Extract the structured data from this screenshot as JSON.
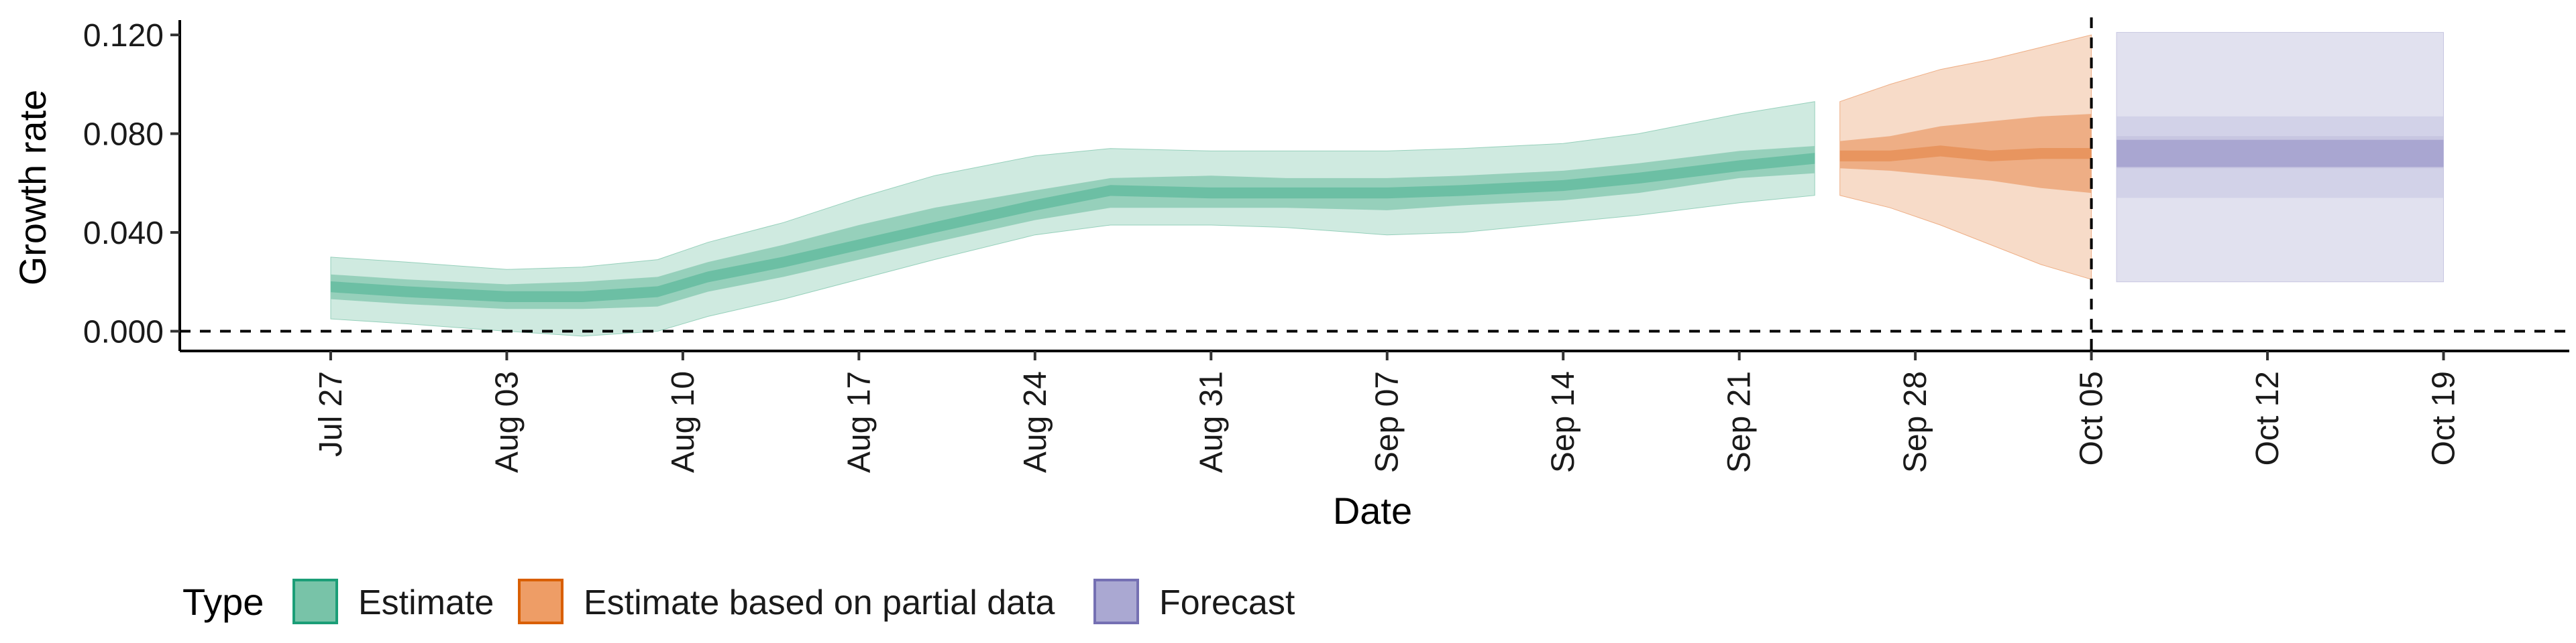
{
  "chart_data": {
    "type": "area",
    "title": "",
    "xlabel": "Date",
    "ylabel": "Growth rate",
    "ylim": [
      -0.008,
      0.126
    ],
    "xlim": [
      "2020-07-21",
      "2020-10-24"
    ],
    "yticks": [
      0.0,
      0.04,
      0.08,
      0.12
    ],
    "ytick_labels": [
      "0.000",
      "0.040",
      "0.080",
      "0.120"
    ],
    "xticks": [
      "2020-07-27",
      "2020-08-03",
      "2020-08-10",
      "2020-08-17",
      "2020-08-24",
      "2020-08-31",
      "2020-09-07",
      "2020-09-14",
      "2020-09-21",
      "2020-09-28",
      "2020-10-05",
      "2020-10-12",
      "2020-10-19"
    ],
    "xtick_labels": [
      "Jul 27",
      "Aug 03",
      "Aug 10",
      "Aug 17",
      "Aug 24",
      "Aug 31",
      "Sep 07",
      "Sep 14",
      "Sep 21",
      "Sep 28",
      "Oct 05",
      "Oct 12",
      "Oct 19"
    ],
    "reference_lines": {
      "horizontal_y": 0.0,
      "vertical_x": "2020-10-05"
    },
    "grid": false,
    "legend": {
      "title": "Type",
      "position": "bottom-left"
    },
    "colors": {
      "Estimate": [
        "#cfeae0",
        "#96d0bb",
        "#6cbfa4"
      ],
      "Estimate based on partial data": [
        "#f7dbc8",
        "#eeae85",
        "#e8955f"
      ],
      "Forecast": [
        "#e1e1ef",
        "#c7c6e1",
        "#a9a6d1"
      ]
    },
    "legend_colors": {
      "Estimate": {
        "fill": "#78c3a8",
        "stroke": "#1b9e77"
      },
      "Estimate based on partial data": {
        "fill": "#ee9d66",
        "stroke": "#d95f02"
      },
      "Forecast": {
        "fill": "#aaa8d2",
        "stroke": "#7570b3"
      }
    },
    "series": [
      {
        "name": "Estimate",
        "x": [
          "2020-07-27",
          "2020-07-30",
          "2020-08-03",
          "2020-08-06",
          "2020-08-09",
          "2020-08-11",
          "2020-08-14",
          "2020-08-17",
          "2020-08-20",
          "2020-08-24",
          "2020-08-27",
          "2020-08-31",
          "2020-09-03",
          "2020-09-07",
          "2020-09-10",
          "2020-09-14",
          "2020-09-17",
          "2020-09-21",
          "2020-09-24"
        ],
        "median": [
          0.018,
          0.016,
          0.014,
          0.014,
          0.016,
          0.022,
          0.028,
          0.035,
          0.042,
          0.051,
          0.057,
          0.056,
          0.056,
          0.056,
          0.057,
          0.059,
          0.062,
          0.067,
          0.07
        ],
        "inner_low": [
          0.013,
          0.011,
          0.009,
          0.009,
          0.01,
          0.016,
          0.022,
          0.029,
          0.036,
          0.045,
          0.05,
          0.05,
          0.05,
          0.049,
          0.051,
          0.053,
          0.056,
          0.062,
          0.064
        ],
        "inner_high": [
          0.023,
          0.021,
          0.019,
          0.02,
          0.022,
          0.028,
          0.035,
          0.043,
          0.05,
          0.057,
          0.062,
          0.063,
          0.062,
          0.062,
          0.063,
          0.065,
          0.068,
          0.073,
          0.075
        ],
        "outer_low": [
          0.005,
          0.003,
          0.0,
          -0.002,
          0.0,
          0.006,
          0.013,
          0.021,
          0.029,
          0.039,
          0.043,
          0.043,
          0.042,
          0.039,
          0.04,
          0.044,
          0.047,
          0.052,
          0.055
        ],
        "outer_high": [
          0.03,
          0.028,
          0.025,
          0.026,
          0.029,
          0.036,
          0.044,
          0.054,
          0.063,
          0.071,
          0.074,
          0.073,
          0.073,
          0.073,
          0.074,
          0.076,
          0.08,
          0.088,
          0.093
        ]
      },
      {
        "name": "Estimate based on partial data",
        "x": [
          "2020-09-25",
          "2020-09-27",
          "2020-09-29",
          "2020-10-01",
          "2020-10-03",
          "2020-10-05"
        ],
        "median": [
          0.071,
          0.071,
          0.073,
          0.071,
          0.072,
          0.072
        ],
        "inner_low": [
          0.066,
          0.065,
          0.063,
          0.061,
          0.058,
          0.056
        ],
        "inner_high": [
          0.077,
          0.079,
          0.083,
          0.085,
          0.087,
          0.088
        ],
        "outer_low": [
          0.055,
          0.05,
          0.043,
          0.035,
          0.027,
          0.021
        ],
        "outer_high": [
          0.093,
          0.1,
          0.106,
          0.11,
          0.115,
          0.12
        ]
      },
      {
        "name": "Forecast",
        "x": [
          "2020-10-06",
          "2020-10-19"
        ],
        "median": [
          0.072,
          0.072
        ],
        "inner_low": [
          0.066,
          0.066
        ],
        "inner_high": [
          0.079,
          0.079
        ],
        "mid_low": [
          0.054,
          0.054
        ],
        "mid_high": [
          0.087,
          0.087
        ],
        "outer_low": [
          0.02,
          0.02
        ],
        "outer_high": [
          0.121,
          0.121
        ]
      }
    ],
    "legend_entries": [
      "Estimate",
      "Estimate based on partial data",
      "Forecast"
    ]
  }
}
